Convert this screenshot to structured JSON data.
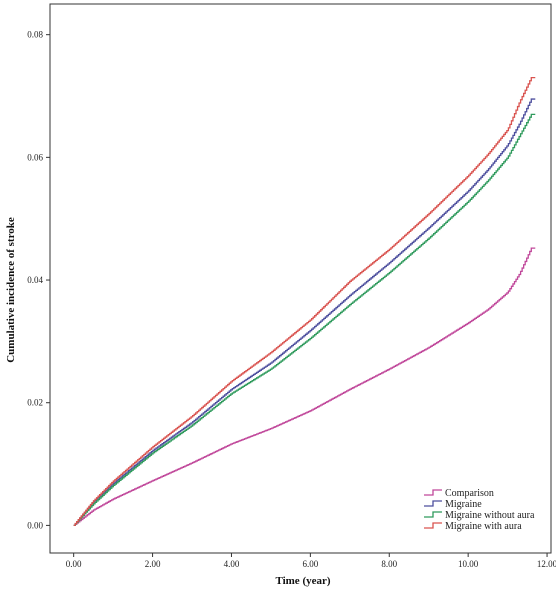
{
  "chart_data": {
    "type": "line",
    "title": "",
    "xlabel": "Time (year)",
    "ylabel": "Cumulative incidence of stroke",
    "xlim": [
      -0.6,
      12.1
    ],
    "ylim": [
      -0.0045,
      0.085
    ],
    "xticks": [
      0,
      2,
      4,
      6,
      8,
      10,
      12
    ],
    "xtick_labels": [
      "0.00",
      "2.00",
      "4.00",
      "6.00",
      "8.00",
      "10.00",
      "12.00"
    ],
    "yticks": [
      0,
      0.02,
      0.04,
      0.06,
      0.08
    ],
    "ytick_labels": [
      "0.00",
      "0.02",
      "0.04",
      "0.06",
      "0.08"
    ],
    "grid": false,
    "legend_position": "bottom-right",
    "series": [
      {
        "name": "Comparison",
        "color": "#c0479a",
        "x": [
          0,
          0.5,
          1,
          2,
          3,
          4,
          5,
          6,
          7,
          8,
          9,
          10,
          10.5,
          11,
          11.3,
          11.6
        ],
        "y": [
          0,
          0.0025,
          0.0043,
          0.0073,
          0.0102,
          0.0133,
          0.0158,
          0.0187,
          0.0222,
          0.0255,
          0.029,
          0.033,
          0.0352,
          0.038,
          0.041,
          0.0452
        ]
      },
      {
        "name": "Migraine",
        "color": "#4d4f9e",
        "x": [
          0,
          0.5,
          1,
          2,
          3,
          4,
          5,
          6,
          7,
          8,
          9,
          10,
          10.5,
          11,
          11.3,
          11.6
        ],
        "y": [
          0,
          0.0038,
          0.0068,
          0.0122,
          0.0168,
          0.0222,
          0.0265,
          0.0318,
          0.0375,
          0.0428,
          0.0485,
          0.0545,
          0.058,
          0.062,
          0.0655,
          0.0695
        ]
      },
      {
        "name": "Migraine without aura",
        "color": "#2f9a5c",
        "x": [
          0,
          0.5,
          1,
          2,
          3,
          4,
          5,
          6,
          7,
          8,
          9,
          10,
          10.5,
          11,
          11.3,
          11.6
        ],
        "y": [
          0,
          0.0035,
          0.0065,
          0.0118,
          0.0163,
          0.0215,
          0.0255,
          0.0305,
          0.036,
          0.0412,
          0.0468,
          0.0528,
          0.0562,
          0.06,
          0.0635,
          0.067
        ]
      },
      {
        "name": "Migraine with aura",
        "color": "#d9534f",
        "x": [
          0,
          0.5,
          1,
          2,
          3,
          4,
          5,
          6,
          7,
          8,
          9,
          10,
          10.5,
          11,
          11.3,
          11.6
        ],
        "y": [
          0,
          0.004,
          0.0072,
          0.0128,
          0.0178,
          0.0235,
          0.0282,
          0.0335,
          0.0398,
          0.045,
          0.0508,
          0.057,
          0.0605,
          0.0645,
          0.069,
          0.073
        ]
      }
    ]
  }
}
